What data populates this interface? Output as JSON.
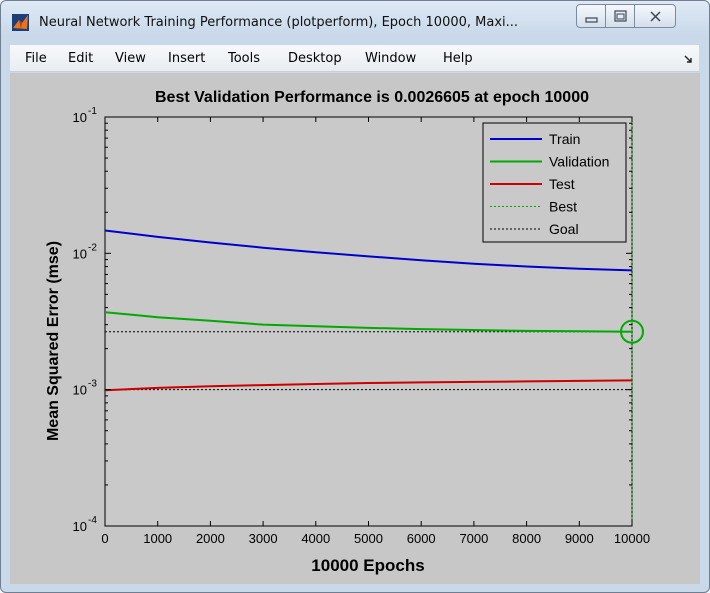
{
  "window": {
    "title": "Neural Network Training Performance (plotperform), Epoch 10000, Maxi...",
    "icon": "matlab-icon"
  },
  "menubar": {
    "items": [
      "File",
      "Edit",
      "View",
      "Insert",
      "Tools",
      "Desktop",
      "Window",
      "Help"
    ],
    "dock_icon": "dock-arrow-icon"
  },
  "chart_data": {
    "type": "line",
    "title": "Best Validation Performance is 0.0026605 at epoch 10000",
    "xlabel": "10000 Epochs",
    "ylabel": "Mean Squared Error  (mse)",
    "xlim": [
      0,
      10000
    ],
    "ylim": [
      0.0001,
      0.1
    ],
    "yscale": "log",
    "grid": false,
    "legend_position": "top-right",
    "x_ticks": [
      0,
      1000,
      2000,
      3000,
      4000,
      5000,
      6000,
      7000,
      8000,
      9000,
      10000
    ],
    "y_ticks": [
      {
        "value": 0.0001,
        "base": "10",
        "exponent": "-4"
      },
      {
        "value": 0.001,
        "base": "10",
        "exponent": "-3"
      },
      {
        "value": 0.01,
        "base": "10",
        "exponent": "-2"
      },
      {
        "value": 0.1,
        "base": "10",
        "exponent": "-1"
      }
    ],
    "series": [
      {
        "name": "Train",
        "color": "#0000cc",
        "style": "solid",
        "x": [
          0,
          1000,
          2000,
          3000,
          4000,
          5000,
          6000,
          7000,
          8000,
          9000,
          10000
        ],
        "y": [
          0.0147,
          0.0132,
          0.012,
          0.011,
          0.0102,
          0.0095,
          0.0089,
          0.0084,
          0.008,
          0.0077,
          0.0075
        ]
      },
      {
        "name": "Validation",
        "color": "#00aa00",
        "style": "solid",
        "x": [
          0,
          1000,
          2000,
          3000,
          4000,
          5000,
          6000,
          7000,
          8000,
          9000,
          10000
        ],
        "y": [
          0.0037,
          0.0034,
          0.0032,
          0.003,
          0.00292,
          0.00284,
          0.00278,
          0.00274,
          0.0027,
          0.00268,
          0.0026605
        ]
      },
      {
        "name": "Test",
        "color": "#cc0000",
        "style": "solid",
        "x": [
          0,
          1000,
          2000,
          3000,
          4000,
          5000,
          6000,
          7000,
          8000,
          9000,
          10000
        ],
        "y": [
          0.00099,
          0.00103,
          0.00106,
          0.00108,
          0.0011,
          0.00112,
          0.00113,
          0.00114,
          0.00115,
          0.00116,
          0.00117
        ]
      },
      {
        "name": "Best",
        "color": "#00aa00",
        "style": "dotted"
      },
      {
        "name": "Goal",
        "color": "#000000",
        "style": "dotted",
        "value": 0.001
      }
    ],
    "best": {
      "epoch": 10000,
      "value": 0.0026605
    }
  }
}
